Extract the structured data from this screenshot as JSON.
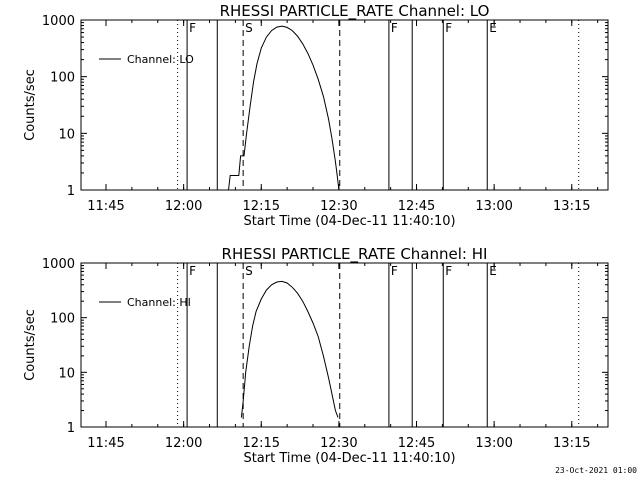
{
  "timestamp": "23-Oct-2021 01:00",
  "chart_data": [
    {
      "type": "line",
      "title": "RHESSI PARTICLE_RATE Channel: LO",
      "xlabel": "Start Time (04-Dec-11 11:40:10)",
      "ylabel": "Counts/sec",
      "y_scale": "log",
      "ylim": [
        1,
        1000
      ],
      "xlim": [
        "11:40:10",
        "13:22:00"
      ],
      "x_ticks": [
        "11:45",
        "12:00",
        "12:15",
        "12:30",
        "12:45",
        "13:00",
        "13:15"
      ],
      "y_ticks": [
        "1",
        "10",
        "100",
        "1000"
      ],
      "legend": {
        "placement": "top-left",
        "entries": [
          "Channel: LO"
        ]
      },
      "markers": [
        {
          "time": "11:58:50",
          "style": "dotted",
          "label": ""
        },
        {
          "time": "12:00:40",
          "style": "solid",
          "label": "F"
        },
        {
          "time": "12:06:30",
          "style": "solid",
          "label": ""
        },
        {
          "time": "12:11:30",
          "style": "dashed",
          "label": "S"
        },
        {
          "time": "12:30:10",
          "style": "dashed",
          "label": ""
        },
        {
          "time": "12:39:40",
          "style": "solid",
          "label": "F"
        },
        {
          "time": "12:44:10",
          "style": "solid",
          "label": ""
        },
        {
          "time": "12:50:10",
          "style": "solid",
          "label": "F"
        },
        {
          "time": "12:58:40",
          "style": "solid",
          "label": "E"
        },
        {
          "time": "13:16:20",
          "style": "dotted",
          "label": ""
        }
      ],
      "series": [
        {
          "x": [
            "12:08:40",
            "12:09:00",
            "12:09:40",
            "12:10:00",
            "12:10:40",
            "12:11:00",
            "12:11:40",
            "12:12:10",
            "12:12:50",
            "12:13:30",
            "12:14:10",
            "12:15:00",
            "12:16:00",
            "12:17:00",
            "12:18:00",
            "12:19:00",
            "12:20:00",
            "12:21:00",
            "12:22:00",
            "12:23:00",
            "12:24:00",
            "12:25:00",
            "12:26:00",
            "12:27:00",
            "12:28:00",
            "12:28:40",
            "12:29:20",
            "12:29:40",
            "12:30:00"
          ],
          "y": [
            1,
            1.8,
            1.8,
            1.8,
            1.8,
            4,
            4,
            10,
            30,
            80,
            170,
            320,
            500,
            650,
            750,
            780,
            740,
            650,
            520,
            380,
            260,
            160,
            90,
            45,
            18,
            8,
            3.2,
            1.8,
            1
          ]
        }
      ]
    },
    {
      "type": "line",
      "title": "RHESSI PARTICLE_RATE Channel: HI",
      "xlabel": "Start Time (04-Dec-11 11:40:10)",
      "ylabel": "Counts/sec",
      "y_scale": "log",
      "ylim": [
        1,
        1000
      ],
      "xlim": [
        "11:40:10",
        "13:22:00"
      ],
      "x_ticks": [
        "11:45",
        "12:00",
        "12:15",
        "12:30",
        "12:45",
        "13:00",
        "13:15"
      ],
      "y_ticks": [
        "1",
        "10",
        "100",
        "1000"
      ],
      "legend": {
        "placement": "top-left",
        "entries": [
          "Channel: HI"
        ]
      },
      "markers": [
        {
          "time": "11:58:50",
          "style": "dotted",
          "label": ""
        },
        {
          "time": "12:00:40",
          "style": "solid",
          "label": "F"
        },
        {
          "time": "12:06:30",
          "style": "solid",
          "label": ""
        },
        {
          "time": "12:11:30",
          "style": "dashed",
          "label": "S"
        },
        {
          "time": "12:30:10",
          "style": "dashed",
          "label": ""
        },
        {
          "time": "12:39:40",
          "style": "solid",
          "label": "F"
        },
        {
          "time": "12:44:10",
          "style": "solid",
          "label": ""
        },
        {
          "time": "12:50:10",
          "style": "solid",
          "label": "F"
        },
        {
          "time": "12:58:40",
          "style": "solid",
          "label": "E"
        },
        {
          "time": "13:16:20",
          "style": "dotted",
          "label": ""
        }
      ],
      "series": [
        {
          "x": [
            "12:11:10",
            "12:11:30",
            "12:12:00",
            "12:12:40",
            "12:13:20",
            "12:14:00",
            "12:15:00",
            "12:16:00",
            "12:17:00",
            "12:18:00",
            "12:19:00",
            "12:20:00",
            "12:21:00",
            "12:22:00",
            "12:23:00",
            "12:24:00",
            "12:25:00",
            "12:26:00",
            "12:27:00",
            "12:28:00",
            "12:28:40",
            "12:29:20",
            "12:29:50"
          ],
          "y": [
            1.5,
            3,
            10,
            30,
            70,
            130,
            220,
            320,
            400,
            450,
            460,
            430,
            360,
            280,
            200,
            130,
            80,
            45,
            20,
            8,
            4,
            2,
            1.5
          ]
        }
      ]
    }
  ]
}
